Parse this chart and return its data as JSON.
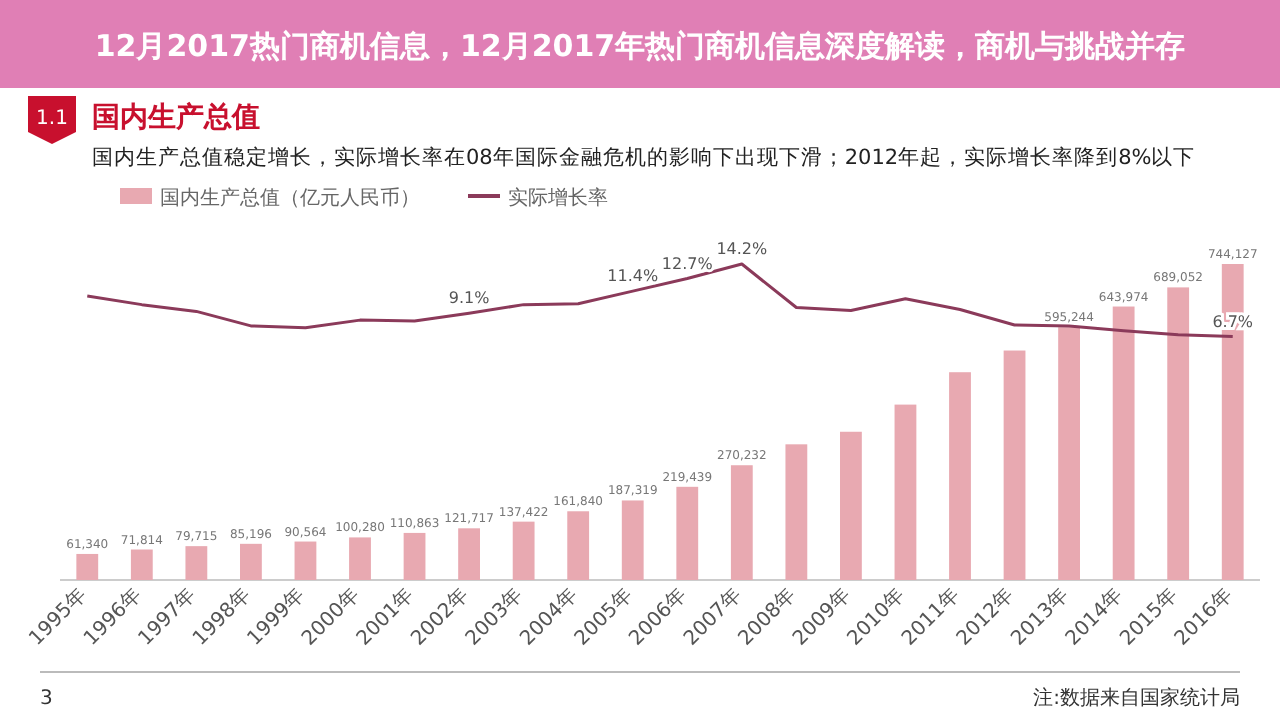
{
  "chart_data": {
    "type": "bar",
    "title": "国内生产总值",
    "subtitle": "国内生产总值稳定增长，实际增长率在08年国际金融危机的影响下出现下滑；2012年起，实际增长率降到8%以下",
    "annotations": [
      "12月2017热门商机信息，12月2017年热门商机信息深度解读，商机与挑战并存",
      "1.1",
      "注:数据来自国家统计局",
      "3"
    ],
    "categories": [
      "1995年",
      "1996年",
      "1997年",
      "1998年",
      "1999年",
      "2000年",
      "2001年",
      "2002年",
      "2003年",
      "2004年",
      "2005年",
      "2006年",
      "2007年",
      "2008年",
      "2009年",
      "2010年",
      "2011年",
      "2012年",
      "2013年",
      "2014年",
      "2015年",
      "2016年"
    ],
    "legend": "top left",
    "series": [
      {
        "name": "国内生产总值（亿元人民币）",
        "color": "#e8a9b1",
        "values": [
          61340,
          71814,
          79715,
          85196,
          90564,
          100280,
          110863,
          121717,
          137422,
          161840,
          187319,
          219439,
          270232,
          319516,
          349081,
          413030,
          489301,
          540367,
          595244,
          643974,
          689052,
          744127
        ],
        "value_labels": [
          "61,340",
          "71,814",
          "79,715",
          "85,196",
          "90,564",
          "100,280",
          "110,863",
          "121,717",
          "137,422",
          "161,840",
          "187,319",
          "219,439",
          "270,232",
          null,
          null,
          null,
          null,
          null,
          "595,244",
          "643,974",
          "689,052",
          "744,127"
        ]
      },
      {
        "name": "实际增长率",
        "type": "line",
        "axis": "y2",
        "color": "#8b3a5a",
        "values": [
          10.9,
          10.0,
          9.3,
          7.8,
          7.6,
          8.4,
          8.3,
          9.1,
          10.0,
          10.1,
          11.4,
          12.7,
          14.2,
          9.7,
          9.4,
          10.6,
          9.5,
          7.9,
          7.8,
          7.3,
          6.9,
          6.7
        ],
        "value_labels": [
          null,
          null,
          null,
          null,
          null,
          null,
          null,
          "9.1%",
          null,
          null,
          "11.4%",
          "12.7%",
          "14.2%",
          null,
          null,
          null,
          null,
          null,
          null,
          null,
          null,
          "6.7%"
        ]
      }
    ]
  }
}
